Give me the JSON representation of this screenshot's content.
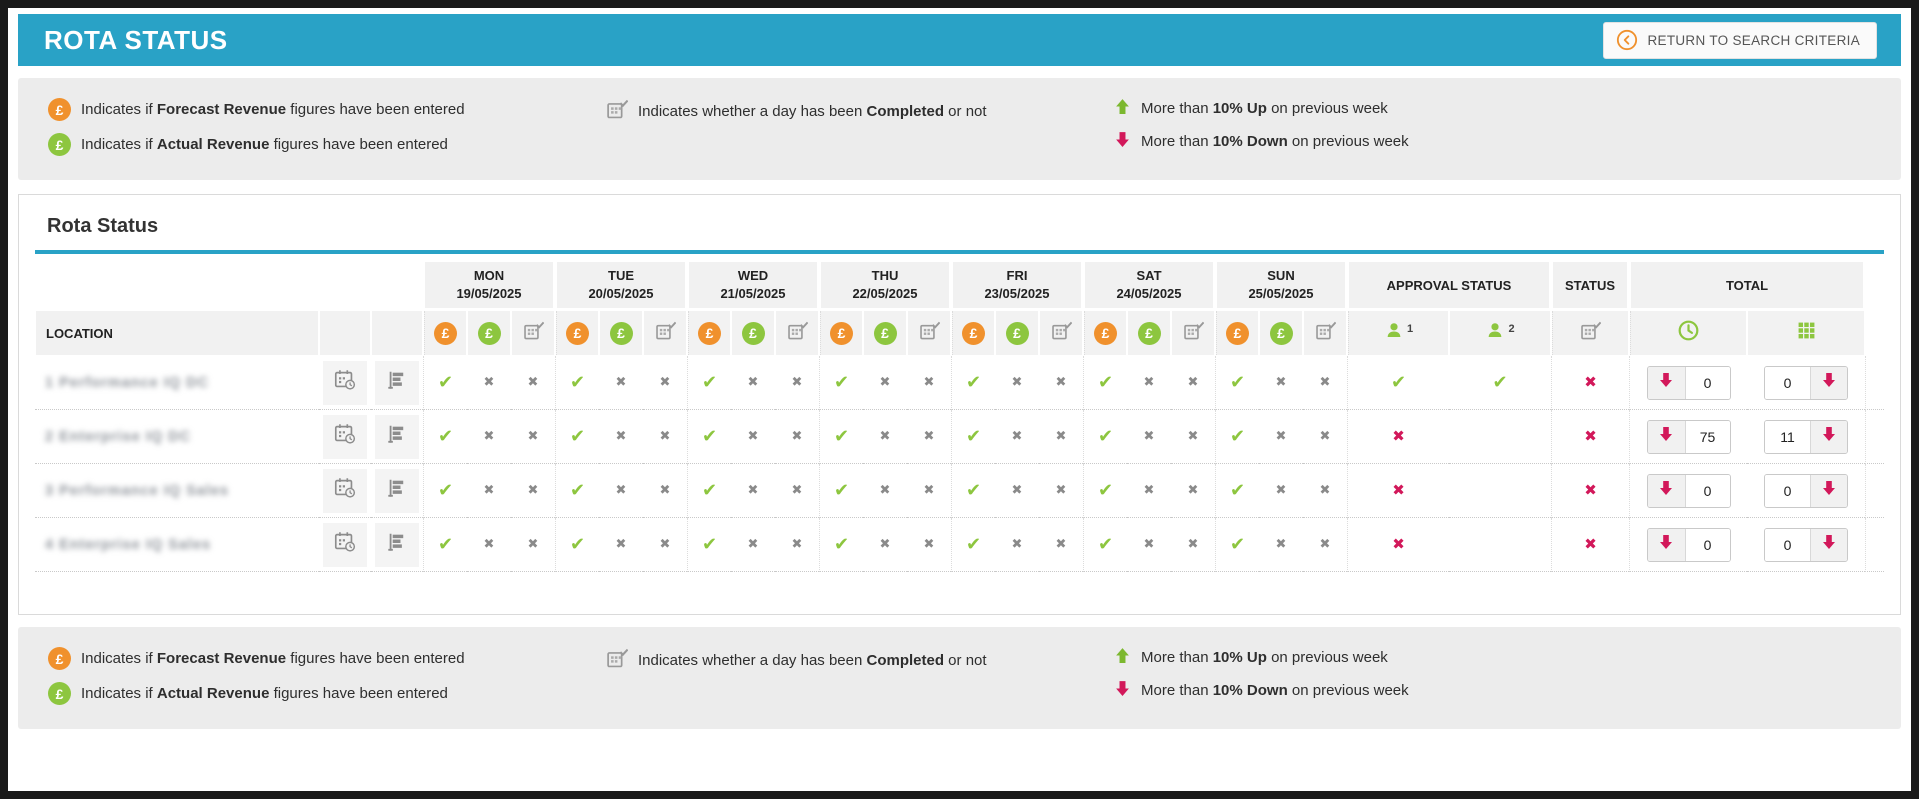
{
  "header": {
    "title": "ROTA STATUS",
    "return_button_label": "RETURN TO SEARCH CRITERIA"
  },
  "icons": {
    "pound_symbol": "£"
  },
  "colors": {
    "accent_teal": "#29a2c6",
    "forecast_orange": "#f0912d",
    "actual_green": "#8dc63f",
    "alert_crimson": "#d2185a",
    "neutral_gray": "#8c8c8c"
  },
  "legend": {
    "forecast": {
      "prefix": "Indicates if ",
      "bold": "Forecast Revenue",
      "suffix": " figures have been entered"
    },
    "actual": {
      "prefix": "Indicates if ",
      "bold": "Actual Revenue",
      "suffix": " figures have been entered"
    },
    "completed": {
      "prefix": "Indicates whether a day has been ",
      "bold": "Completed",
      "suffix": " or not"
    },
    "up": {
      "prefix": "More than ",
      "bold": "10% Up",
      "suffix": " on previous week"
    },
    "down": {
      "prefix": "More than ",
      "bold": "10% Down",
      "suffix": " on previous week"
    }
  },
  "panel": {
    "title": "Rota Status"
  },
  "table": {
    "location_header": "LOCATION",
    "approval_header": "APPROVAL STATUS",
    "approver1_label": "1",
    "approver2_label": "2",
    "status_header": "STATUS",
    "total_header": "TOTAL",
    "days": [
      {
        "name": "MON",
        "date": "19/05/2025"
      },
      {
        "name": "TUE",
        "date": "20/05/2025"
      },
      {
        "name": "WED",
        "date": "21/05/2025"
      },
      {
        "name": "THU",
        "date": "22/05/2025"
      },
      {
        "name": "FRI",
        "date": "23/05/2025"
      },
      {
        "name": "SAT",
        "date": "24/05/2025"
      },
      {
        "name": "SUN",
        "date": "25/05/2025"
      }
    ],
    "rows": [
      {
        "location": "1 Performance IQ DC",
        "location_redacted": true,
        "day_marks": [
          [
            "check",
            "cross",
            "cross"
          ],
          [
            "check",
            "cross",
            "cross"
          ],
          [
            "check",
            "cross",
            "cross"
          ],
          [
            "check",
            "cross",
            "cross"
          ],
          [
            "check",
            "cross",
            "cross"
          ],
          [
            "check",
            "cross",
            "cross"
          ],
          [
            "check",
            "cross",
            "cross"
          ]
        ],
        "approvals": [
          "check",
          "check"
        ],
        "status": "cross",
        "total_hours": {
          "trend": "down",
          "value": "0"
        },
        "total_shifts": {
          "value": "0",
          "trend": "down"
        }
      },
      {
        "location": "2 Enterprise IQ DC",
        "location_redacted": true,
        "day_marks": [
          [
            "check",
            "cross",
            "cross"
          ],
          [
            "check",
            "cross",
            "cross"
          ],
          [
            "check",
            "cross",
            "cross"
          ],
          [
            "check",
            "cross",
            "cross"
          ],
          [
            "check",
            "cross",
            "cross"
          ],
          [
            "check",
            "cross",
            "cross"
          ],
          [
            "check",
            "cross",
            "cross"
          ]
        ],
        "approvals": [
          "cross",
          ""
        ],
        "status": "cross",
        "total_hours": {
          "trend": "down",
          "value": "75"
        },
        "total_shifts": {
          "value": "11",
          "trend": "down"
        }
      },
      {
        "location": "3 Performance IQ Sales",
        "location_redacted": true,
        "day_marks": [
          [
            "check",
            "cross",
            "cross"
          ],
          [
            "check",
            "cross",
            "cross"
          ],
          [
            "check",
            "cross",
            "cross"
          ],
          [
            "check",
            "cross",
            "cross"
          ],
          [
            "check",
            "cross",
            "cross"
          ],
          [
            "check",
            "cross",
            "cross"
          ],
          [
            "check",
            "cross",
            "cross"
          ]
        ],
        "approvals": [
          "cross",
          ""
        ],
        "status": "cross",
        "total_hours": {
          "trend": "down",
          "value": "0"
        },
        "total_shifts": {
          "value": "0",
          "trend": "down"
        }
      },
      {
        "location": "4 Enterprise IQ Sales",
        "location_redacted": true,
        "day_marks": [
          [
            "check",
            "cross",
            "cross"
          ],
          [
            "check",
            "cross",
            "cross"
          ],
          [
            "check",
            "cross",
            "cross"
          ],
          [
            "check",
            "cross",
            "cross"
          ],
          [
            "check",
            "cross",
            "cross"
          ],
          [
            "check",
            "cross",
            "cross"
          ],
          [
            "check",
            "cross",
            "cross"
          ]
        ],
        "approvals": [
          "cross",
          ""
        ],
        "status": "cross",
        "total_hours": {
          "trend": "down",
          "value": "0"
        },
        "total_shifts": {
          "value": "0",
          "trend": "down"
        }
      }
    ]
  }
}
